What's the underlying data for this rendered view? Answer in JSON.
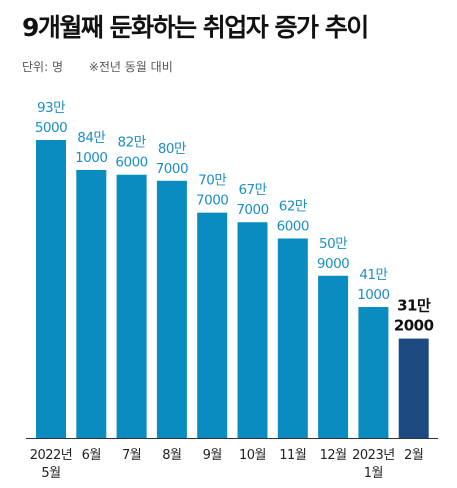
{
  "header": {
    "title": "9개월째 둔화하는 취업자 증가 추이",
    "unit_label": "단위: 명",
    "note": "※전년 동월 대비"
  },
  "colors": {
    "bar": "#0a8cc0",
    "highlight": "#1d4a80",
    "label": "#1a8fc4",
    "axis": "#333333"
  },
  "chart_data": {
    "type": "bar",
    "title": "9개월째 둔화하는 취업자 증가 추이",
    "unit": "명",
    "categories": [
      [
        "2022년",
        "5월"
      ],
      [
        "6월"
      ],
      [
        "7월"
      ],
      [
        "8월"
      ],
      [
        "9월"
      ],
      [
        "10월"
      ],
      [
        "11월"
      ],
      [
        "12월"
      ],
      [
        "2023년",
        "1월"
      ],
      [
        "2월"
      ]
    ],
    "values": [
      935000,
      841000,
      826000,
      807000,
      707000,
      677000,
      626000,
      509000,
      411000,
      312000
    ],
    "value_labels": [
      [
        "93만",
        "5000"
      ],
      [
        "84만",
        "1000"
      ],
      [
        "82만",
        "6000"
      ],
      [
        "80만",
        "7000"
      ],
      [
        "70만",
        "7000"
      ],
      [
        "67만",
        "7000"
      ],
      [
        "62만",
        "6000"
      ],
      [
        "50만",
        "9000"
      ],
      [
        "41만",
        "1000"
      ],
      [
        "31만",
        "2000"
      ]
    ],
    "highlight_index": 9,
    "ylim": [
      0,
      935000
    ],
    "grid": false
  }
}
